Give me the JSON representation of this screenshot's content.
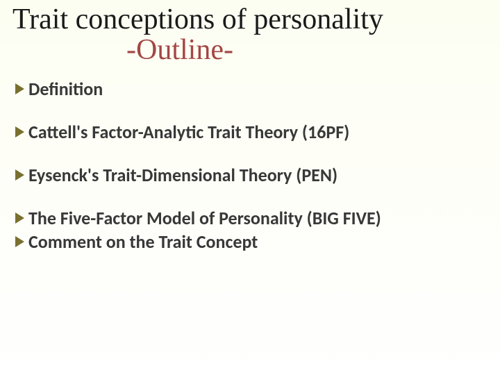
{
  "slide": {
    "title_line1": "Trait conceptions of personality",
    "title_line2": "-Outline-",
    "title_color": "#1a1a1a",
    "subtitle_color": "#a34745",
    "title_fontsize": 42,
    "bullet_arrow_color": "#79702f",
    "bullet_text_color": "#383838",
    "bullet_fontsize": 26,
    "background_gradient_top": "#fdfef2",
    "background_gradient_bottom": "#fefffe",
    "bullets": [
      {
        "label": "Definition"
      },
      {
        "label": "Cattell's Factor-Analytic Trait Theory (16PF)"
      },
      {
        "label": "Eysenck's Trait-Dimensional Theory (PEN)"
      },
      {
        "label": "The Five-Factor Model of Personality (BIG FIVE)"
      },
      {
        "label": "Comment on the Trait Concept"
      }
    ]
  }
}
